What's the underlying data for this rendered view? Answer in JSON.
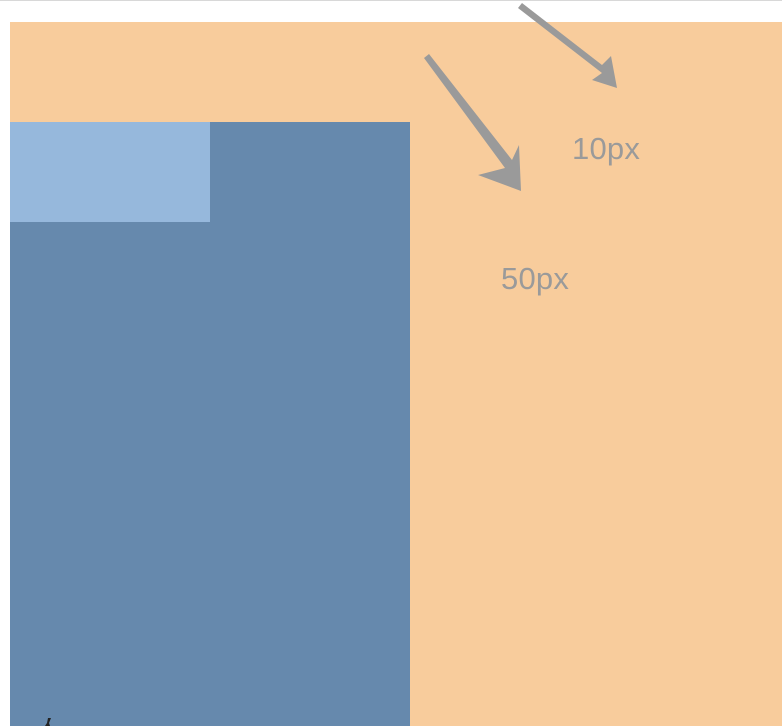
{
  "diagram": {
    "labels": {
      "ten_px": "10px",
      "fifty_px": "50px"
    },
    "colors": {
      "outer_box": "#f8cc9c",
      "inner_box": "#6689ad",
      "corner_box": "#96b8dc",
      "arrow": "#9a9a9a",
      "label": "#9a9a9a"
    },
    "icons": {
      "arrow_10": "arrow-icon",
      "arrow_50": "arrow-icon"
    }
  }
}
